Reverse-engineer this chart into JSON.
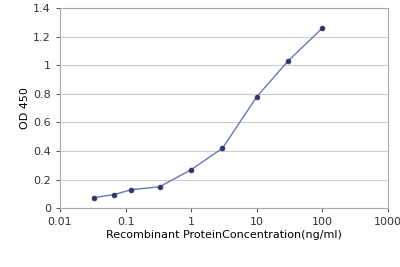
{
  "x_values": [
    0.0329,
    0.0658,
    0.123,
    0.329,
    1.0,
    3.0,
    10.0,
    30.0,
    100.0
  ],
  "y_values": [
    0.075,
    0.095,
    0.13,
    0.15,
    0.27,
    0.42,
    0.78,
    1.03,
    1.26
  ],
  "line_color": "#6677bb",
  "marker_color": "#333366",
  "xlabel": "Recombinant ProteinConcentration(ng/ml)",
  "ylabel": "OD 450",
  "xlim": [
    0.01,
    1000
  ],
  "ylim": [
    0,
    1.4
  ],
  "yticks": [
    0,
    0.2,
    0.4,
    0.6,
    0.8,
    1.0,
    1.2,
    1.4
  ],
  "ytick_labels": [
    "0",
    "0.2",
    "0.4",
    "0.6",
    "0.8",
    "1",
    "1.2",
    "1.4"
  ],
  "xtick_vals": [
    0.01,
    0.1,
    1,
    10,
    100,
    1000
  ],
  "xtick_labels": [
    "0.01",
    "0.1",
    "1",
    "10",
    "100",
    "1000"
  ],
  "background_color": "#ffffff",
  "plot_bg_color": "#ffffff",
  "grid_color": "#cccccc",
  "xlabel_fontsize": 8,
  "ylabel_fontsize": 8,
  "tick_fontsize": 8,
  "spine_color": "#aaaaaa"
}
